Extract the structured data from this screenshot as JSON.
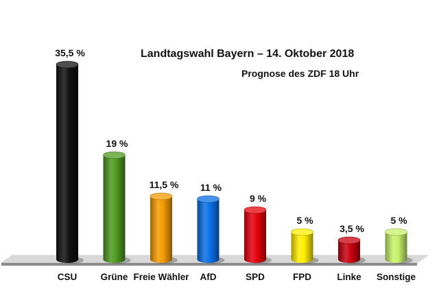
{
  "chart_data": {
    "type": "bar",
    "title": "Landtagswahl Bayern – 14. Oktober 2018",
    "subtitle": "Prognose des ZDF 18 Uhr",
    "categories": [
      "CSU",
      "Grüne",
      "Freie Wähler",
      "AfD",
      "SPD",
      "FPD",
      "Linke",
      "Sonstige"
    ],
    "values": [
      35.5,
      19,
      11.5,
      11,
      9,
      5,
      3.5,
      5
    ],
    "value_labels": [
      "35,5 %",
      "19 %",
      "11,5 %",
      "11 %",
      "9 %",
      "5 %",
      "3,5 %",
      "5 %"
    ],
    "colors": [
      "#111111",
      "#4f9a21",
      "#f49b00",
      "#0a6fe6",
      "#e5000b",
      "#ffee00",
      "#c7000f",
      "#c7f26b"
    ],
    "ylim": [
      0,
      36
    ],
    "xlabel": "",
    "ylabel": "",
    "grid": false,
    "legend": "none"
  }
}
